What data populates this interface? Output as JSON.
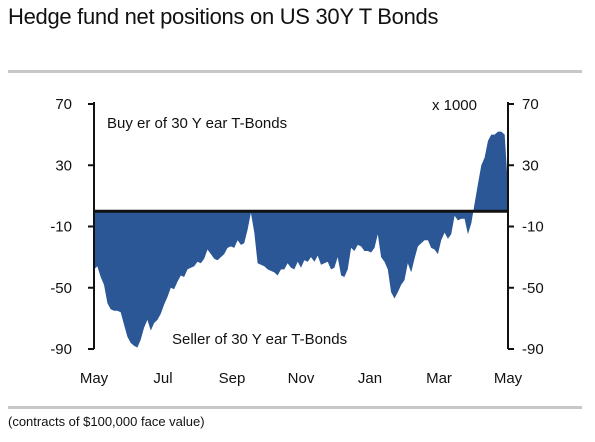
{
  "title": "Hedge fund net positions on US 30Y T Bonds",
  "footnote": "(contracts of $100,000 face value)",
  "colors": {
    "series_fill": "#2b5797",
    "zero_line": "#111111",
    "rule": "#c8c8c8",
    "axis": "#111111"
  },
  "chart_data": {
    "type": "area",
    "title": "Hedge fund net positions on US 30Y T Bonds",
    "unit_label": "x 1000",
    "annotations": {
      "top": "Buy er of 30 Y ear T-Bonds",
      "bottom": "Seller of 30 Y ear T-Bonds"
    },
    "ylim": [
      -90,
      70
    ],
    "yticks": [
      70,
      30,
      -10,
      -50,
      -90
    ],
    "ytick_labels": [
      "70",
      "30",
      "-10",
      "-50",
      "-90"
    ],
    "y_axes": [
      "left",
      "right"
    ],
    "xticks": [
      "May",
      "Jul",
      "Sep",
      "Nov",
      "Jan",
      "Mar",
      "May"
    ],
    "baseline": 0,
    "grid": false,
    "series": [
      {
        "values": [
          -38,
          -36,
          -43,
          -48,
          -60,
          -64,
          -65,
          -65,
          -66,
          -74,
          -82,
          -86,
          -88,
          -89,
          -84,
          -76,
          -71,
          -78,
          -73,
          -71,
          -67,
          -61,
          -56,
          -50,
          -51,
          -46,
          -42,
          -43,
          -38,
          -37,
          -36,
          -33,
          -34,
          -31,
          -25,
          -28,
          -31,
          -32,
          -30,
          -28,
          -24,
          -23,
          -24,
          -19,
          -22,
          -21,
          -12,
          -1,
          -14,
          -34,
          -35,
          -36,
          -38,
          -39,
          -40,
          -42,
          -38,
          -38,
          -34,
          -37,
          -38,
          -33,
          -37,
          -32,
          -33,
          -30,
          -33,
          -29,
          -35,
          -34,
          -33,
          -38,
          -37,
          -30,
          -42,
          -43,
          -38,
          -24,
          -26,
          -22,
          -23,
          -26,
          -26,
          -27,
          -24,
          -15,
          -30,
          -33,
          -38,
          -53,
          -57,
          -53,
          -48,
          -45,
          -34,
          -40,
          -31,
          -23,
          -21,
          -19,
          -19,
          -24,
          -25,
          -28,
          -19,
          -14,
          -18,
          -15,
          -3,
          -6,
          -5,
          -5,
          -15,
          -8,
          5,
          18,
          30,
          35,
          46,
          50,
          50,
          52,
          52,
          50,
          15
        ]
      }
    ]
  }
}
